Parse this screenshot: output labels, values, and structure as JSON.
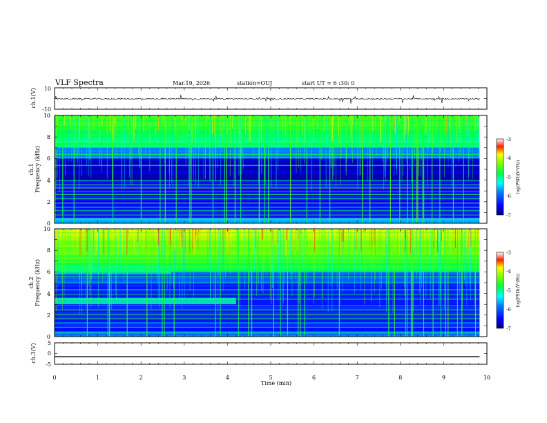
{
  "header": {
    "title": "VLF Spectra",
    "date": "Mar.19, 2026",
    "station": "station=OUJ",
    "start_ut": "start  UT =  6 :30: 0"
  },
  "chart_data": [
    {
      "type": "line",
      "id": "ch1-waveform",
      "ylabel": "ch.1(V)",
      "ylim": [
        -10,
        10
      ],
      "ytick_labels": [
        "10",
        "-10"
      ],
      "baseline": -0.3
    },
    {
      "type": "heatmap",
      "id": "ch1-spectrogram",
      "ylabel_channel": "ch.1",
      "ylabel": "Frequency (kHz)",
      "ylim": [
        0,
        10
      ],
      "ytick_labels": [
        "0",
        "2",
        "4",
        "6",
        "8",
        "10"
      ],
      "colorbar": {
        "label": "log(PSD)(V²/Hz)",
        "range": [
          -7,
          -3
        ],
        "tick_labels": [
          "-3",
          "-4",
          "-5",
          "-6",
          "-7"
        ]
      }
    },
    {
      "type": "heatmap",
      "id": "ch2-spectrogram",
      "ylabel_channel": "ch.2",
      "ylabel": "Frequency (kHz)",
      "ylim": [
        0,
        10
      ],
      "ytick_labels": [
        "0",
        "2",
        "4",
        "6",
        "8",
        "10"
      ],
      "colorbar": {
        "label": "log(PSD)(V²/Hz)",
        "range": [
          -7,
          -3
        ],
        "tick_labels": [
          "-3",
          "-4",
          "-5",
          "-6",
          "-7"
        ]
      }
    },
    {
      "type": "line",
      "id": "ch3-waveform",
      "ylabel": "ch.3(V)",
      "ylim": [
        -5,
        5
      ],
      "ytick_labels": [
        "5",
        "0",
        "-5"
      ],
      "values": [
        -1.5,
        -1.5
      ]
    }
  ],
  "x_axis": {
    "label": "Time (min)",
    "range": [
      0,
      10
    ],
    "data_end": 9.83,
    "tick_labels": [
      "0",
      "1",
      "2",
      "3",
      "4",
      "5",
      "6",
      "7",
      "8",
      "9",
      "10"
    ]
  },
  "colors": {
    "scale": [
      "#000080",
      "#0000ff",
      "#0080ff",
      "#00ffff",
      "#00ff80",
      "#80ff00",
      "#ffff00",
      "#ff8000",
      "#ff0000",
      "#ffffff"
    ]
  }
}
